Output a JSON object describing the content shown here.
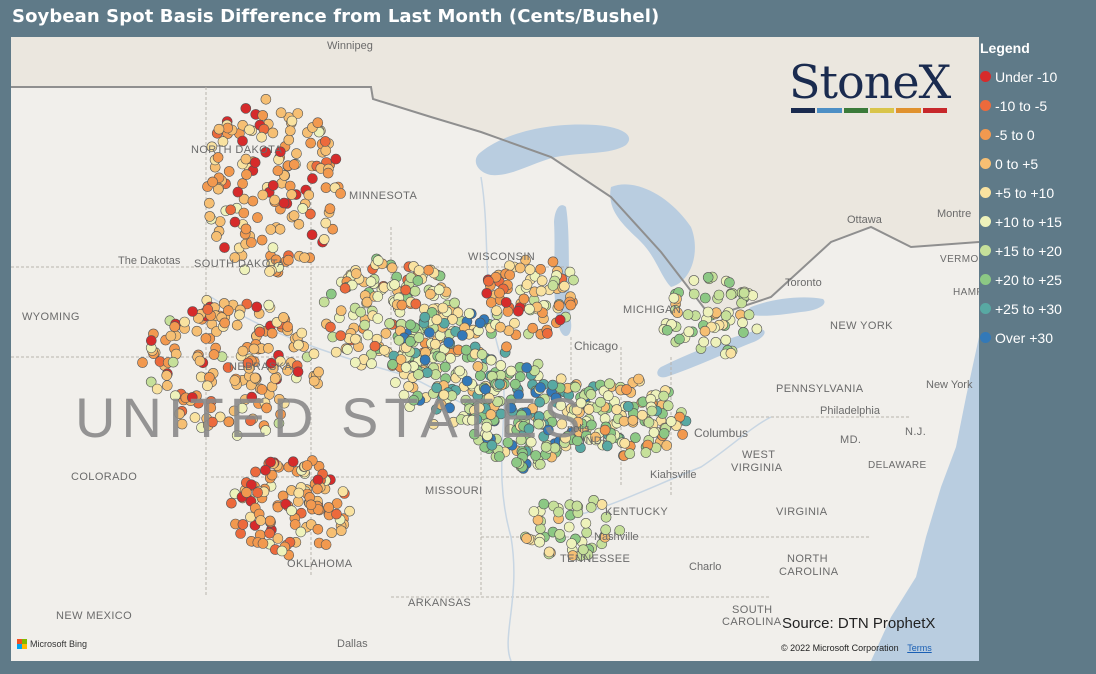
{
  "title": "Soybean Spot Basis Difference from Last Month (Cents/Bushel)",
  "legend": {
    "title": "Legend",
    "items": [
      {
        "label": "Under -10",
        "color": "#d62b2b"
      },
      {
        "label": "-10 to -5",
        "color": "#ec6a3c"
      },
      {
        "label": "-5 to 0",
        "color": "#f2994f"
      },
      {
        "label": "0 to +5",
        "color": "#f6bf73"
      },
      {
        "label": "+5 to +10",
        "color": "#f9e2a0"
      },
      {
        "label": "+10 to +15",
        "color": "#eef2bb"
      },
      {
        "label": "+15 to +20",
        "color": "#c6e09a"
      },
      {
        "label": "+20 to +25",
        "color": "#8cc884"
      },
      {
        "label": "+25 to +30",
        "color": "#58a9a3"
      },
      {
        "label": "Over +30",
        "color": "#3379b8"
      }
    ]
  },
  "logo": {
    "text": "StoneX",
    "stripe_colors": [
      "#1a2b4f",
      "#4d8fc5",
      "#3b7b3a",
      "#d9c54a",
      "#e0922e",
      "#c7282b"
    ]
  },
  "map_labels": {
    "winnipeg": "Winnipeg",
    "north_dakota": "NORTH DAKOTA",
    "minnesota": "MINNESOTA",
    "the_dakotas": "The Dakotas",
    "south_dakota": "SOUTH DAKOTA",
    "wisconsin": "WISCONSIN",
    "wyoming": "WYOMING",
    "nebraska": "NEBRASKA",
    "chicago": "Chicago",
    "michigan": "MICHIGAN",
    "toronto": "Toronto",
    "ottawa": "Ottawa",
    "montreal": "Montre",
    "vermont": "VERMONT",
    "hampshire": "HAMP",
    "new_york_state": "NEW YORK",
    "new_york_city": "New York",
    "pennsylvania": "PENNSYLVANIA",
    "philadelphia": "Philadelphia",
    "nj": "N.J.",
    "md": "MD.",
    "delaware": "DELAWARE",
    "columbus": "Columbus",
    "west_virginia_1": "WEST",
    "west_virginia_2": "VIRGINIA",
    "virginia": "VIRGINIA",
    "united_states": "UNITED STATES",
    "colorado": "COLORADO",
    "indiana": "INDI",
    "indianapolis": "nolis",
    "missouri": "MISSOURI",
    "kiahsville": "Kiahsville",
    "kentucky": "KENTUCKY",
    "nashville": "Nashville",
    "tennessee": "TENNESSEE",
    "oklahoma": "OKLAHOMA",
    "arkansas": "ARKANSAS",
    "charlotte": "Charlo",
    "north_carolina_1": "NORTH",
    "north_carolina_2": "CAROLINA",
    "south_carolina_1": "SOUTH",
    "south_carolina_2": "CAROLINA",
    "new_mexico": "NEW MEXICO",
    "dallas": "Dallas"
  },
  "source": "Source: DTN ProphetX",
  "copyright": "© 2022 Microsoft Corporation",
  "terms": "Terms",
  "bing": "Microsoft Bing"
}
